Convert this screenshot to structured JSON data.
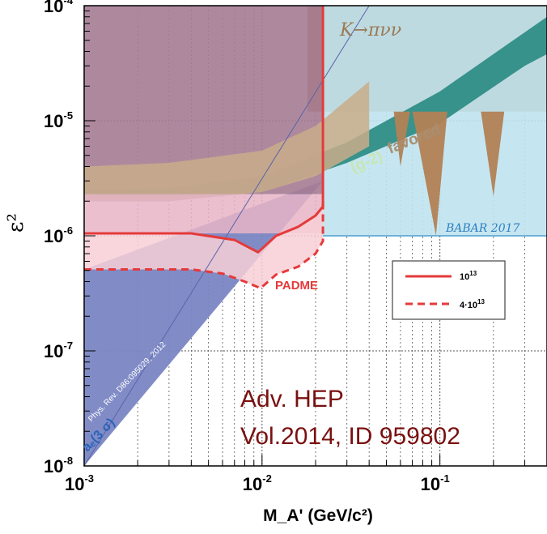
{
  "chart_data": {
    "type": "area",
    "title": "",
    "xlabel": "M_A' (GeV/c²)",
    "ylabel": "ε²",
    "x_scale": "log",
    "y_scale": "log",
    "xlim": [
      0.001,
      0.4
    ],
    "ylim": [
      1e-08,
      0.0001
    ],
    "grid": true,
    "x_ticks": [
      {
        "value": 0.001,
        "base": "10",
        "exp": "-3"
      },
      {
        "value": 0.01,
        "base": "10",
        "exp": "-2"
      },
      {
        "value": 0.1,
        "base": "10",
        "exp": "-1"
      }
    ],
    "y_ticks": [
      {
        "value": 1e-08,
        "base": "10",
        "exp": "-8"
      },
      {
        "value": 1e-07,
        "base": "10",
        "exp": "-7"
      },
      {
        "value": 1e-06,
        "base": "10",
        "exp": "-6"
      },
      {
        "value": 1e-05,
        "base": "10",
        "exp": "-5"
      },
      {
        "value": 0.0001,
        "base": "10",
        "exp": "-4"
      }
    ],
    "series": [
      {
        "name": "10¹³",
        "style": "solid",
        "color": "#e53a3a",
        "x": [
          0.001,
          0.004,
          0.007,
          0.0095,
          0.012,
          0.016,
          0.02,
          0.022,
          0.022
        ],
        "y": [
          1.05e-06,
          1.05e-06,
          9.2e-07,
          7.2e-07,
          1e-06,
          1.2e-06,
          1.5e-06,
          1.8e-06,
          0.0001
        ]
      },
      {
        "name": "4·10¹³",
        "style": "dashed",
        "color": "#e53a3a",
        "x": [
          0.001,
          0.004,
          0.006,
          0.008,
          0.0098,
          0.012,
          0.016,
          0.02,
          0.022,
          0.022
        ],
        "y": [
          5.1e-07,
          5.1e-07,
          4.7e-07,
          4e-07,
          3.5e-07,
          4.6e-07,
          5.4e-07,
          7e-07,
          9e-07,
          2e-06
        ]
      }
    ],
    "regions": [
      {
        "id": "kpnn",
        "x": [
          0.018,
          0.21,
          0.4,
          0.4,
          0.018
        ],
        "y": [
          0.0001,
          0.0001,
          0.0001,
          1.2e-05,
          1.2e-05
        ]
      },
      {
        "id": "babar",
        "x": [
          0.022,
          0.4,
          0.4,
          0.022
        ],
        "y": [
          1e-06,
          1e-06,
          0.0001,
          0.0001
        ]
      },
      {
        "id": "g2",
        "x": [
          0.001,
          0.003,
          0.01,
          0.03,
          0.1,
          0.3,
          0.4,
          0.4,
          0.2,
          0.1,
          0.03,
          0.01,
          0.003,
          0.001
        ],
        "y": [
          2e-06,
          2e-06,
          2.4e-06,
          4.3e-06,
          9.5e-06,
          3e-05,
          3.8e-05,
          8e-05,
          3.8e-05,
          1.8e-05,
          6.5e-06,
          3.3e-06,
          2.6e-06,
          2.5e-06
        ]
      },
      {
        "id": "favored",
        "x": [
          0.001,
          0.003,
          0.01,
          0.02,
          0.04,
          0.04,
          0.02,
          0.01,
          0.003,
          0.001
        ],
        "y": [
          2e-06,
          2e-06,
          2.4e-06,
          3.3e-06,
          6e-06,
          2.2e-05,
          9e-06,
          5.5e-06,
          4.3e-06,
          4e-06
        ]
      },
      {
        "id": "ae",
        "x": [
          0.001,
          0.001,
          0.022,
          0.022
        ],
        "y": [
          1e-08,
          5.1e-07,
          3e-06,
          3e-06
        ]
      },
      {
        "id": "mauve",
        "x": [
          0.001,
          0.022,
          0.022,
          0.001
        ],
        "y": [
          0.0001,
          0.0001,
          2.3e-06,
          2.3e-06
        ]
      },
      {
        "id": "pink",
        "x": [
          0.001,
          0.022,
          0.022,
          0.001
        ],
        "y": [
          2.3e-06,
          2.3e-06,
          1.05e-06,
          1.05e-06
        ]
      },
      {
        "id": "padme_light",
        "x": [
          0.001,
          0.004,
          0.006,
          0.008,
          0.0098,
          0.012,
          0.016,
          0.02,
          0.022,
          0.022,
          0.02,
          0.016,
          0.012,
          0.0095,
          0.007,
          0.004,
          0.001
        ],
        "y": [
          5.1e-07,
          5.1e-07,
          4.7e-07,
          4e-07,
          3.5e-07,
          4.6e-07,
          5.4e-07,
          7e-07,
          9e-07,
          1.8e-06,
          1.5e-06,
          1.2e-06,
          1e-06,
          7.2e-07,
          9.2e-07,
          1.05e-06,
          1.05e-06
        ]
      }
    ],
    "babar_line": 1e-06,
    "annotations": {
      "kpnn": "K→πνν",
      "g2": "(g-2)",
      "favored": "favored",
      "babar": "BABAR 2017",
      "padme": "PADME",
      "ref": "Phys. Rev. D86:095029, 2012",
      "ae": "aₑ(3 σ)",
      "citation1": "Adv. HEP",
      "citation2": "Vol.2014, ID 959802"
    },
    "legend": {
      "position": "right",
      "entries": [
        {
          "label": "10",
          "sup": "13",
          "style": "solid",
          "color": "#e53a3a"
        },
        {
          "label": "4·10",
          "sup": "13",
          "style": "dashed",
          "color": "#e53a3a"
        }
      ]
    },
    "colors": {
      "kpnn": "#b28155",
      "babar": "#bfe3f0",
      "g2": "#2f8e86",
      "favored": "#c9ad8a",
      "ae": "#7a86c4",
      "mauve": "#a57c93",
      "pink": "#e8b4c6",
      "padme_light": "#f7cfd6",
      "red": "#e53a3a"
    }
  }
}
